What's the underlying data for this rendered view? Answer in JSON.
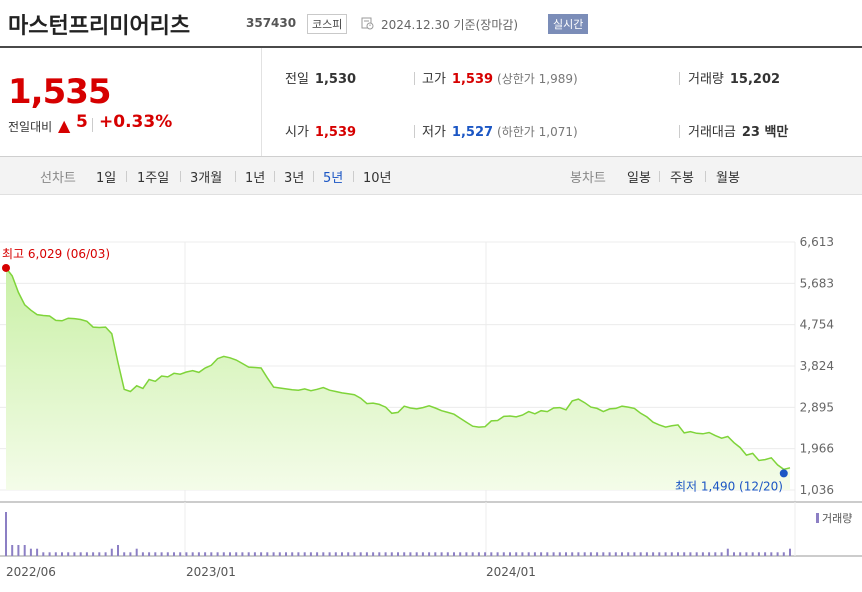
{
  "header": {
    "name": "마스턴프리미어리츠",
    "code": "357430",
    "market": "코스피",
    "date": "2024.12.30 기준(장마감)",
    "realtime": "실시간"
  },
  "price": {
    "current": "1,535",
    "change_label": "전일대비",
    "change_arrow": "▲",
    "change": "5",
    "change_rate": "+0.33%"
  },
  "stats": {
    "prev_label": "전일",
    "prev": "1,530",
    "high_label": "고가",
    "high": "1,539",
    "upper_limit": "(상한가 1,989)",
    "volume_label": "거래량",
    "volume": "15,202",
    "open_label": "시가",
    "open": "1,539",
    "low_label": "저가",
    "low": "1,527",
    "lower_limit": "(하한가 1,071)",
    "amount_label": "거래대금",
    "amount": "23 백만"
  },
  "tabs": {
    "line_label": "선차트",
    "line_items": [
      "1일",
      "1주일",
      "3개월",
      "1년",
      "3년",
      "5년",
      "10년"
    ],
    "line_active": "5년",
    "candle_label": "봉차트",
    "candle_items": [
      "일봉",
      "주봉",
      "월봉"
    ]
  },
  "colors": {
    "up": "#d60000",
    "down": "#1b56c4",
    "line": "#7fd43a",
    "volume": "#8c7fc4"
  },
  "chart_data": {
    "type": "area",
    "series": [
      {
        "values": [
          6029,
          5850,
          5480,
          5200,
          5080,
          4980,
          4960,
          4950,
          4850,
          4840,
          4900,
          4890,
          4870,
          4830,
          4700,
          4690,
          4700,
          4550,
          3900,
          3300,
          3250,
          3380,
          3320,
          3520,
          3480,
          3600,
          3580,
          3660,
          3640,
          3690,
          3720,
          3680,
          3780,
          3840,
          3990,
          4040,
          4010,
          3960,
          3880,
          3800,
          3790,
          3780,
          3560,
          3350,
          3330,
          3310,
          3290,
          3280,
          3310,
          3270,
          3300,
          3340,
          3280,
          3250,
          3220,
          3200,
          3180,
          3100,
          2980,
          2990,
          2960,
          2900,
          2760,
          2780,
          2920,
          2880,
          2860,
          2890,
          2930,
          2880,
          2820,
          2780,
          2740,
          2650,
          2560,
          2470,
          2450,
          2460,
          2590,
          2600,
          2690,
          2700,
          2680,
          2720,
          2800,
          2750,
          2820,
          2800,
          2880,
          2890,
          2840,
          3040,
          3080,
          3000,
          2900,
          2870,
          2800,
          2860,
          2870,
          2920,
          2900,
          2870,
          2760,
          2680,
          2560,
          2500,
          2450,
          2480,
          2500,
          2320,
          2350,
          2310,
          2300,
          2330,
          2260,
          2200,
          2240,
          2100,
          1990,
          1820,
          1860,
          1700,
          1720,
          1760,
          1600,
          1500,
          1535
        ]
      }
    ],
    "x_tick_labels": [
      "2022/06",
      "2023/01",
      "2024/01"
    ],
    "y_ticks": [
      "6,613",
      "5,683",
      "4,754",
      "3,824",
      "2,895",
      "1,966",
      "1,036"
    ],
    "ylim": [
      1036,
      6613
    ],
    "max_annotation": "최고 6,029 (06/03)",
    "min_annotation": "최저 1,490 (12/20)",
    "volume_label": "거래량",
    "volume": [
      12,
      3,
      3,
      3,
      2,
      2,
      1,
      1,
      1,
      1,
      1,
      1,
      1,
      1,
      1,
      1,
      1,
      2,
      3,
      1,
      1,
      2,
      1,
      1,
      1,
      1,
      1,
      1,
      1,
      1,
      1,
      1,
      1,
      1,
      1,
      1,
      1,
      1,
      1,
      1,
      1,
      1,
      1,
      1,
      1,
      1,
      1,
      1,
      1,
      1,
      1,
      1,
      1,
      1,
      1,
      1,
      1,
      1,
      1,
      1,
      1,
      1,
      1,
      1,
      1,
      1,
      1,
      1,
      1,
      1,
      1,
      1,
      1,
      1,
      1,
      1,
      1,
      1,
      1,
      1,
      1,
      1,
      1,
      1,
      1,
      1,
      1,
      1,
      1,
      1,
      1,
      1,
      1,
      1,
      1,
      1,
      1,
      1,
      1,
      1,
      1,
      1,
      1,
      1,
      1,
      1,
      1,
      1,
      1,
      1,
      1,
      1,
      1,
      1,
      1,
      1,
      2,
      1,
      1,
      1,
      1,
      1,
      1,
      1,
      1,
      1,
      2
    ],
    "grid": true
  }
}
